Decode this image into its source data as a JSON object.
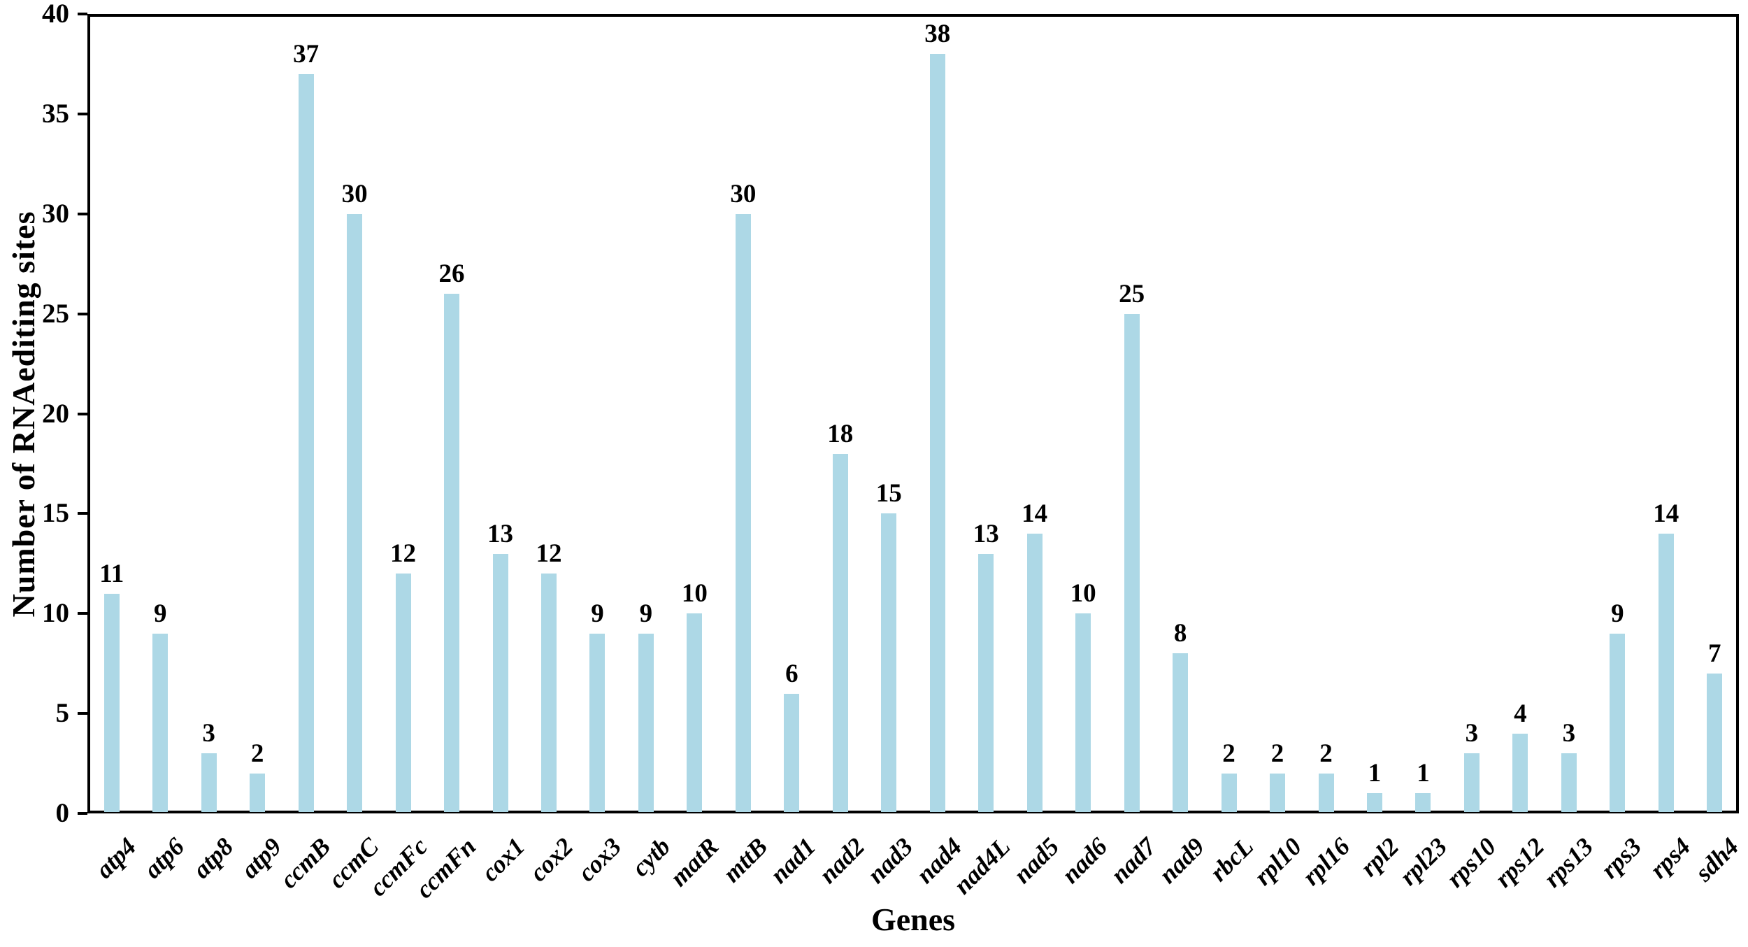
{
  "chart_data": {
    "type": "bar",
    "xlabel": "Genes",
    "ylabel": "Number of RNAediting sites",
    "categories": [
      "atp4",
      "atp6",
      "atp8",
      "atp9",
      "ccmB",
      "ccmC",
      "ccmFc",
      "ccmFn",
      "cox1",
      "cox2",
      "cox3",
      "cytb",
      "matR",
      "mttB",
      "nad1",
      "nad2",
      "nad3",
      "nad4",
      "nad4L",
      "nad5",
      "nad6",
      "nad7",
      "nad9",
      "rbcL",
      "rpl10",
      "rpl16",
      "rpl2",
      "rpl23",
      "rps10",
      "rps12",
      "rps13",
      "rps3",
      "rps4",
      "sdh4"
    ],
    "values": [
      11,
      9,
      3,
      2,
      37,
      30,
      12,
      26,
      13,
      12,
      9,
      9,
      10,
      30,
      6,
      18,
      15,
      38,
      13,
      14,
      10,
      25,
      8,
      2,
      2,
      2,
      1,
      1,
      3,
      4,
      3,
      9,
      14,
      7
    ],
    "value_labels": [
      "11",
      "9",
      "3",
      "2",
      "37",
      "30",
      "12",
      "26",
      "13",
      "12",
      "9",
      "9",
      "10",
      "30",
      "6",
      "18",
      "15",
      "38",
      "13",
      "14",
      "10",
      "25",
      "8",
      "2",
      "2",
      "2",
      "1",
      "1",
      "3",
      "4",
      "3",
      "9",
      "14",
      "7"
    ],
    "ylim": [
      0,
      40
    ],
    "yticks": [
      0,
      5,
      10,
      15,
      20,
      25,
      30,
      35,
      40
    ],
    "grid": false,
    "legend_shown": false,
    "bar_color": "#ADD8E6",
    "axis_color": "#000000",
    "text_color": "#000000",
    "background_color": "#ffffff"
  }
}
